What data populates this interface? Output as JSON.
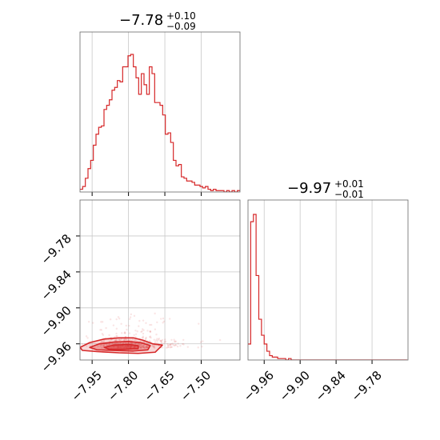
{
  "chart_data": {
    "type": "corner",
    "color": "#d62728",
    "parameters": 2,
    "titles": [
      {
        "value": "−7.78",
        "upper": "+0.10",
        "lower": "−0.09"
      },
      {
        "value": "−9.97",
        "upper": "+0.01",
        "lower": "−0.01"
      }
    ],
    "param1": {
      "range": [
        -8.0,
        -7.34
      ],
      "ticks": [
        -7.95,
        -7.8,
        -7.65,
        -7.5
      ],
      "tick_labels": [
        "−7.95",
        "−7.80",
        "−7.65",
        "−7.50"
      ]
    },
    "param2": {
      "range": [
        -9.987,
        -9.72
      ],
      "ticks": [
        -9.96,
        -9.9,
        -9.84,
        -9.78
      ],
      "tick_labels": [
        "−9.96",
        "−9.90",
        "−9.84",
        "−9.78"
      ]
    },
    "hist1": {
      "bin_start": -8.0,
      "bin_width": 0.011,
      "counts": [
        2,
        4,
        10,
        17,
        23,
        34,
        42,
        47,
        48,
        60,
        63,
        67,
        74,
        76,
        81,
        80,
        91,
        91,
        99,
        100,
        91,
        83,
        71,
        86,
        78,
        71,
        91,
        86,
        65,
        65,
        63,
        56,
        42,
        43,
        36,
        23,
        19,
        20,
        11,
        10,
        8,
        8,
        7,
        5,
        5,
        4,
        3,
        4,
        2,
        1,
        2,
        1,
        1,
        1,
        0,
        1,
        0,
        1,
        0,
        1
      ]
    },
    "hist2": {
      "bin_start": -9.987,
      "bin_width": 0.0045,
      "counts": [
        11,
        95,
        100,
        58,
        28,
        17,
        11,
        6,
        3,
        2,
        2,
        1,
        1,
        1,
        0,
        1,
        0,
        0,
        0,
        0,
        0,
        0,
        0,
        0,
        0,
        0,
        0,
        0,
        0,
        0,
        0,
        0,
        0,
        0,
        0,
        0,
        0,
        0,
        0,
        0,
        0,
        0,
        0,
        0,
        0,
        0,
        0,
        0,
        0,
        0,
        0,
        0,
        0,
        0,
        0,
        0,
        0,
        0,
        0
      ]
    },
    "contours": [
      {
        "level": "outer",
        "points": [
          [
            -8.0,
            -9.966
          ],
          [
            -7.96,
            -9.958
          ],
          [
            -7.9,
            -9.952
          ],
          [
            -7.84,
            -9.95
          ],
          [
            -7.78,
            -9.95
          ],
          [
            -7.74,
            -9.954
          ],
          [
            -7.7,
            -9.96
          ],
          [
            -7.66,
            -9.962
          ],
          [
            -7.69,
            -9.974
          ],
          [
            -7.76,
            -9.976
          ],
          [
            -7.84,
            -9.975
          ],
          [
            -7.93,
            -9.973
          ],
          [
            -7.99,
            -9.971
          ]
        ]
      },
      {
        "level": "middle",
        "points": [
          [
            -7.96,
            -9.966
          ],
          [
            -7.92,
            -9.96
          ],
          [
            -7.86,
            -9.957
          ],
          [
            -7.8,
            -9.956
          ],
          [
            -7.75,
            -9.958
          ],
          [
            -7.71,
            -9.963
          ],
          [
            -7.72,
            -9.97
          ],
          [
            -7.78,
            -9.972
          ],
          [
            -7.86,
            -9.971
          ],
          [
            -7.93,
            -9.97
          ]
        ]
      },
      {
        "level": "inner",
        "points": [
          [
            -7.9,
            -9.966
          ],
          [
            -7.86,
            -9.962
          ],
          [
            -7.8,
            -9.961
          ],
          [
            -7.76,
            -9.963
          ],
          [
            -7.76,
            -9.968
          ],
          [
            -7.82,
            -9.969
          ],
          [
            -7.88,
            -9.969
          ]
        ]
      }
    ]
  }
}
